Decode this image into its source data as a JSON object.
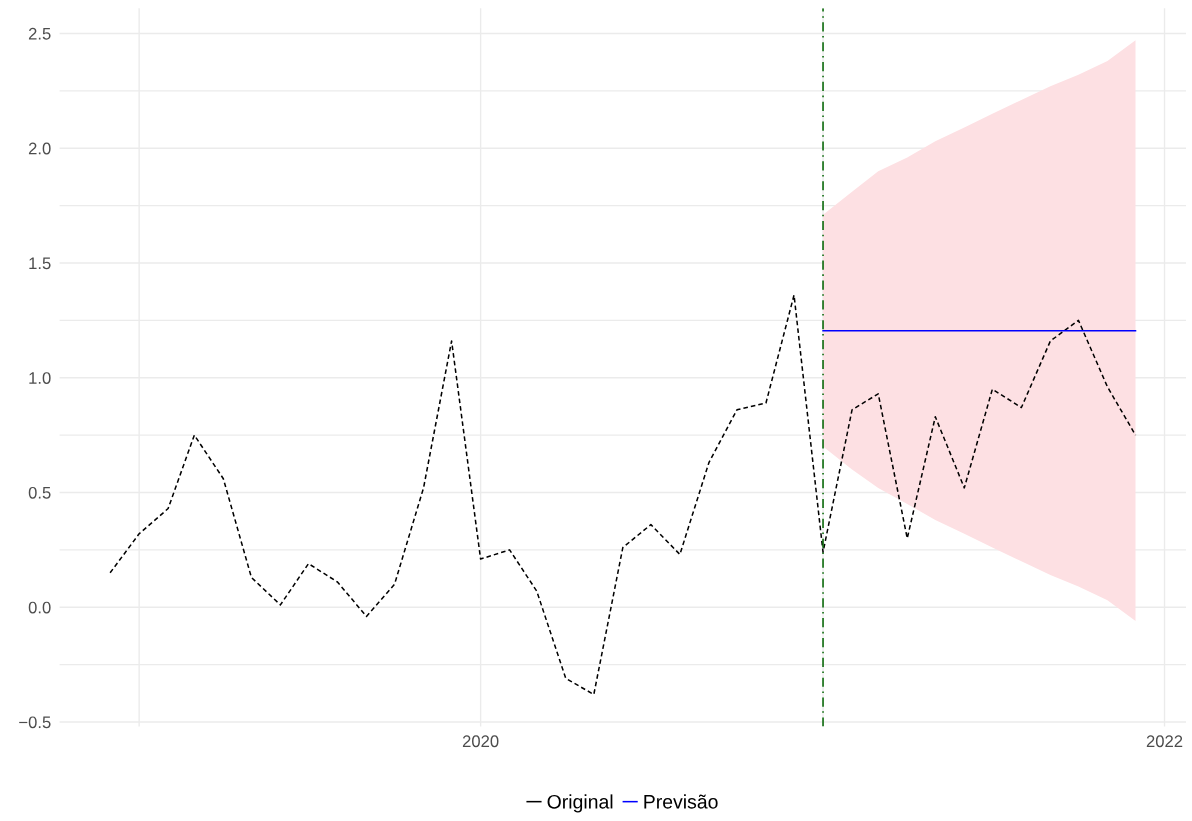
{
  "chart_data": {
    "type": "line",
    "series": [
      {
        "name": "Original",
        "color": "#000000",
        "line_style": "dashed",
        "x": [
          "2018-12",
          "2019-01",
          "2019-02",
          "2019-03",
          "2019-04",
          "2019-05",
          "2019-06",
          "2019-07",
          "2019-08",
          "2019-09",
          "2019-10",
          "2019-11",
          "2019-12",
          "2020-01",
          "2020-02",
          "2020-03",
          "2020-04",
          "2020-05",
          "2020-06",
          "2020-07",
          "2020-08",
          "2020-09",
          "2020-10",
          "2020-11",
          "2020-12",
          "2021-01",
          "2021-02",
          "2021-03",
          "2021-04",
          "2021-05",
          "2021-06",
          "2021-07",
          "2021-08",
          "2021-09",
          "2021-10",
          "2021-11",
          "2021-12"
        ],
        "values": [
          0.15,
          0.32,
          0.43,
          0.75,
          0.56,
          0.13,
          0.01,
          0.19,
          0.11,
          -0.04,
          0.1,
          0.52,
          1.16,
          0.21,
          0.25,
          0.07,
          -0.31,
          -0.38,
          0.26,
          0.36,
          0.23,
          0.63,
          0.86,
          0.89,
          1.36,
          0.24,
          0.86,
          0.93,
          0.3,
          0.83,
          0.52,
          0.95,
          0.87,
          1.16,
          1.25,
          0.96,
          0.75
        ]
      },
      {
        "name": "Previsão",
        "color": "#0000ff",
        "line_style": "solid",
        "x": [
          "2021-01",
          "2021-02",
          "2021-03",
          "2021-04",
          "2021-05",
          "2021-06",
          "2021-07",
          "2021-08",
          "2021-09",
          "2021-10",
          "2021-11",
          "2021-12"
        ],
        "values": [
          1.205,
          1.205,
          1.205,
          1.205,
          1.205,
          1.205,
          1.205,
          1.205,
          1.205,
          1.205,
          1.205,
          1.205
        ],
        "lower": [
          0.7,
          0.6,
          0.52,
          0.45,
          0.38,
          0.32,
          0.26,
          0.2,
          0.14,
          0.09,
          0.03,
          -0.06
        ],
        "upper": [
          1.71,
          1.81,
          1.9,
          1.96,
          2.03,
          2.09,
          2.15,
          2.21,
          2.27,
          2.32,
          2.38,
          2.47
        ]
      }
    ],
    "xlim": [
      "2018-10-08",
      "2022-01-24"
    ],
    "xticks": [
      {
        "value": "2019-01-01",
        "label": null
      },
      {
        "value": "2020-01-01",
        "label": "2020"
      },
      {
        "value": "2021-01-01",
        "label": null
      },
      {
        "value": "2022-01-01",
        "label": "2022"
      }
    ],
    "ylim": [
      -0.52,
      2.61
    ],
    "yticks": [
      {
        "value": -0.5,
        "label": "−0.5"
      },
      {
        "value": -0.25,
        "label": null
      },
      {
        "value": 0,
        "label": "0.0"
      },
      {
        "value": 0.25,
        "label": null
      },
      {
        "value": 0.5,
        "label": "0.5"
      },
      {
        "value": 0.75,
        "label": null
      },
      {
        "value": 1,
        "label": "1.0"
      },
      {
        "value": 1.25,
        "label": null
      },
      {
        "value": 1.5,
        "label": "1.5"
      },
      {
        "value": 1.75,
        "label": null
      },
      {
        "value": 2,
        "label": "2.0"
      },
      {
        "value": 2.25,
        "label": null
      },
      {
        "value": 2.5,
        "label": "2.5"
      }
    ],
    "ref_lines": [
      {
        "axis": "x",
        "value": "2021-01",
        "color": "#006400",
        "line_style": "dashdot"
      }
    ],
    "grid": true,
    "legend": "bottom",
    "marker": "none"
  }
}
